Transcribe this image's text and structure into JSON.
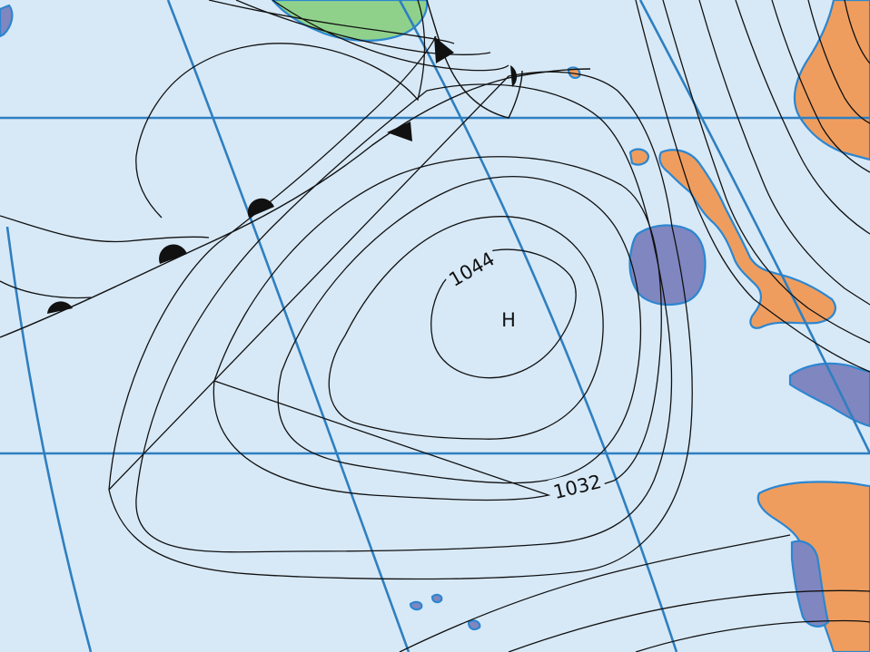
{
  "map": {
    "high_label": "H",
    "isobar_labels": {
      "inner": "1044",
      "outer": "1032"
    }
  },
  "colors": {
    "ocean": "#d7e9f7",
    "graticule": "#2f7fc0",
    "coastline": "#2c86d0",
    "land_iceland": "#8fd18b",
    "land_britain_iberia": "#ef9d5e",
    "land_ireland_france_portugal": "#7f86c0",
    "isobar": "#111111"
  },
  "features": [
    "high-pressure-centre",
    "isobars",
    "cold-front",
    "warm-front",
    "graticule",
    "iceland",
    "ireland",
    "great-britain",
    "scandinavia",
    "france",
    "iberian-peninsula",
    "azores"
  ]
}
